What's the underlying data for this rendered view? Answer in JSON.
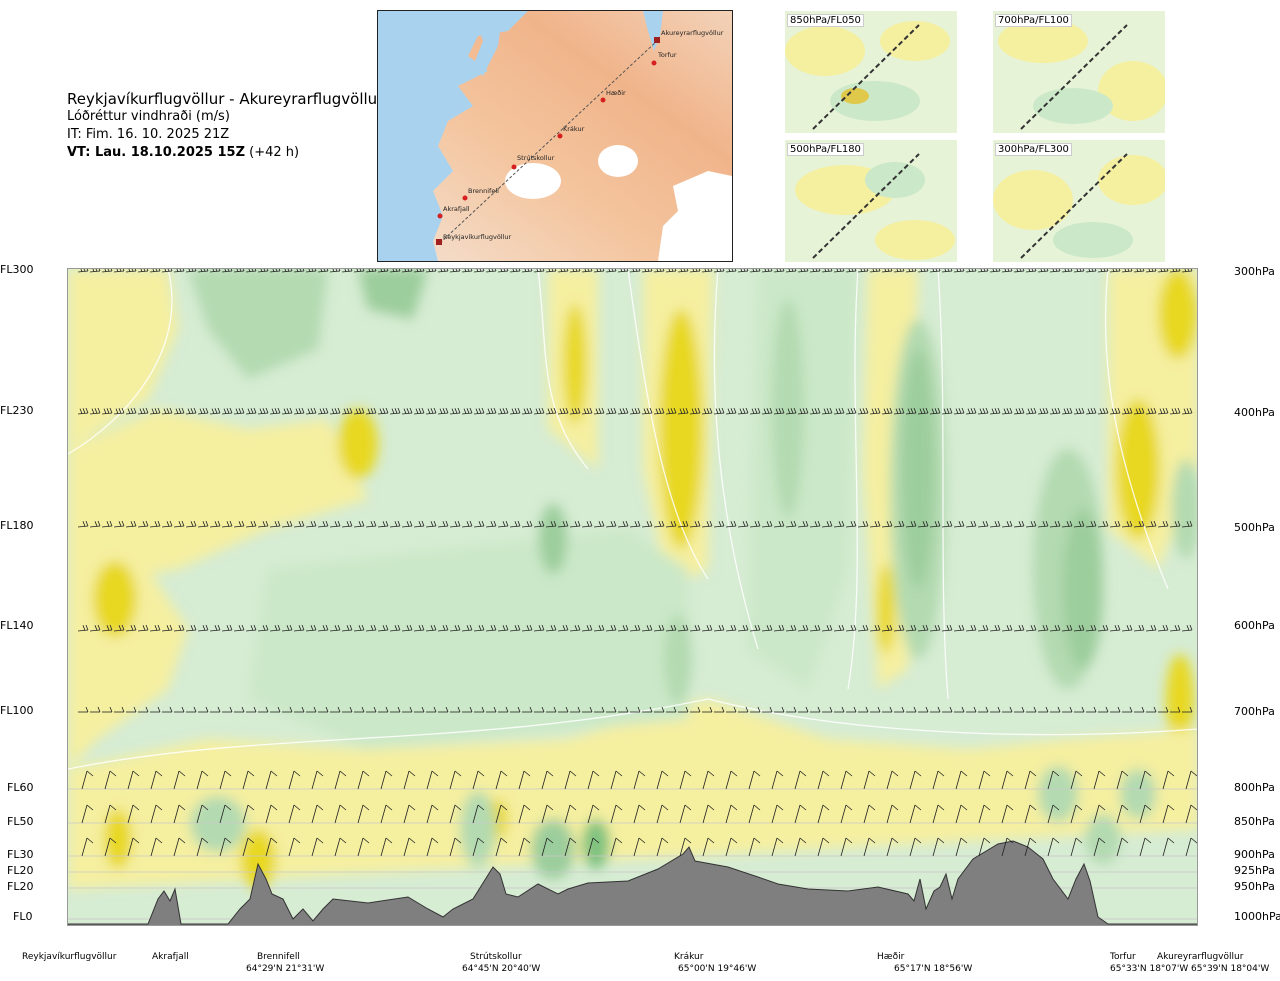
{
  "header": {
    "route": "Reykjavíkurflugvöllur - Akureyrarflugvöllur",
    "parameter": "Lóðréttur vindhraði (m/s)",
    "issue_time": "IT: Fim. 16. 10. 2025 21Z",
    "valid_time_bold": "VT: Lau. 18.10.2025 15Z",
    "valid_time_offset": "(+42 h)"
  },
  "map": {
    "waypoints": [
      "Akureyrarflugvöllur",
      "Torfur",
      "Hæðir",
      "Krákur",
      "Strútskollur",
      "Brennifell",
      "Akrafjall",
      "Reykjavíkurflugvöllur"
    ]
  },
  "thumbnails": [
    "850hPa/FL050",
    "700hPa/FL100",
    "500hPa/FL180",
    "300hPa/FL300"
  ],
  "left_axis": [
    "FL300",
    "FL230",
    "FL180",
    "FL140",
    "FL100",
    "FL60",
    "FL50",
    "FL30",
    "FL20",
    "FL20",
    "FL0"
  ],
  "right_axis": [
    "300hPa",
    "400hPa",
    "500hPa",
    "600hPa",
    "700hPa",
    "800hPa",
    "850hPa",
    "900hPa",
    "925hPa",
    "950hPa",
    "1000hPa"
  ],
  "bottom_places": [
    {
      "name": "Reykjavíkurflugvöllur",
      "coord": ""
    },
    {
      "name": "Akrafjall",
      "coord": ""
    },
    {
      "name": "Brennifell",
      "coord": "64°29'N 21°31'W"
    },
    {
      "name": "Strútskollur",
      "coord": "64°45'N 20°40'W"
    },
    {
      "name": "Krákur",
      "coord": "65°00'N 19°46'W"
    },
    {
      "name": "Hæðir",
      "coord": "65°17'N 18°56'W"
    },
    {
      "name": "Torfur",
      "coord": "65°33'N 18°07'W"
    },
    {
      "name": "Akureyrarflugvöllur",
      "coord": "65°39'N 18°04'W"
    }
  ],
  "colors": {
    "strong_up": "#e8d823",
    "up": "#f5efa0",
    "weak_up": "#fbf8cf",
    "neutral": "#fffee9",
    "weak_down": "#e4f3dc",
    "down": "#cbe8c8",
    "strong_down": "#9ccd9c",
    "terrain": "#7f7f7f"
  }
}
